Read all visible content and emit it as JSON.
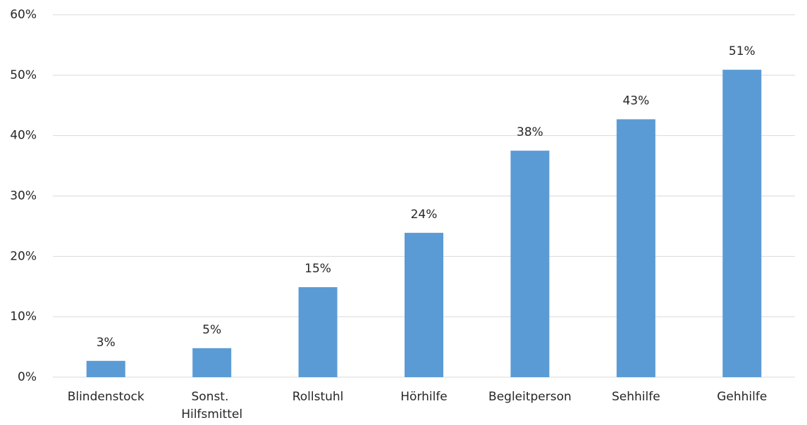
{
  "chart_data": {
    "type": "bar",
    "categories": [
      "Blindenstock",
      "Sonst. Hilfsmittel",
      "Rollstuhl",
      "Hörhilfe",
      "Begleitperson",
      "Sehhilfe",
      "Gehhilfe"
    ],
    "values": [
      2.7,
      4.8,
      14.9,
      23.9,
      37.5,
      42.7,
      50.9
    ],
    "value_labels": [
      "3%",
      "5%",
      "15%",
      "24%",
      "38%",
      "43%",
      "51%"
    ],
    "color": "#5b9bd5",
    "ylim": [
      0,
      60
    ],
    "yticks": [
      {
        "value": 0,
        "label": "0%"
      },
      {
        "value": 10,
        "label": "10%"
      },
      {
        "value": 20,
        "label": "20%"
      },
      {
        "value": 30,
        "label": "30%"
      },
      {
        "value": 40,
        "label": "40%"
      },
      {
        "value": 50,
        "label": "50%"
      },
      {
        "value": 60,
        "label": "60%"
      }
    ],
    "grid": true
  }
}
